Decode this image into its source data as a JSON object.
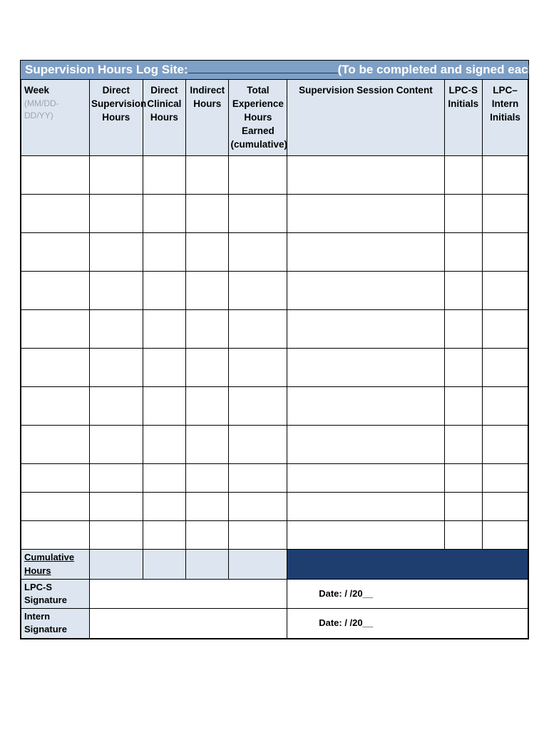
{
  "title": {
    "left": "Supervision Hours Log  Site:",
    "right": "(To be completed and signed each week)"
  },
  "columns": {
    "week": {
      "label": "Week",
      "sub": "(MM/DD-DD/YY)"
    },
    "direct_supervision": {
      "ln1": "Direct",
      "ln2": "Supervision",
      "ln3": "Hours"
    },
    "direct_clinical": {
      "ln1": "Direct",
      "ln2": "Clinical",
      "ln3": "Hours"
    },
    "indirect": {
      "ln1": "Indirect",
      "ln2": "Hours"
    },
    "total": {
      "ln1": "Total",
      "ln2": "Experience",
      "ln3": "Hours  Earned",
      "ln4": "(cumulative)"
    },
    "content": {
      "label": "Supervision Session Content"
    },
    "lpcs": {
      "ln1": "LPC-S",
      "ln2": "Initials"
    },
    "intern": {
      "ln1": "LPC–Intern",
      "ln2": "Initials"
    }
  },
  "rows": {
    "count": 11,
    "short_threshold": 8
  },
  "footer": {
    "cumulative": "Cumulative Hours",
    "lpcs_sig": "LPC-S Signature",
    "intern_sig": "Intern Signature",
    "date_text": "Date:      /      /20__"
  },
  "colors": {
    "title_bg": "#7e9fc6",
    "title_text": "#ffffff",
    "header_bg": "#dde6f0",
    "dark_bg": "#1e3e70",
    "border": "#000000",
    "sub_text": "#9aa5af"
  }
}
